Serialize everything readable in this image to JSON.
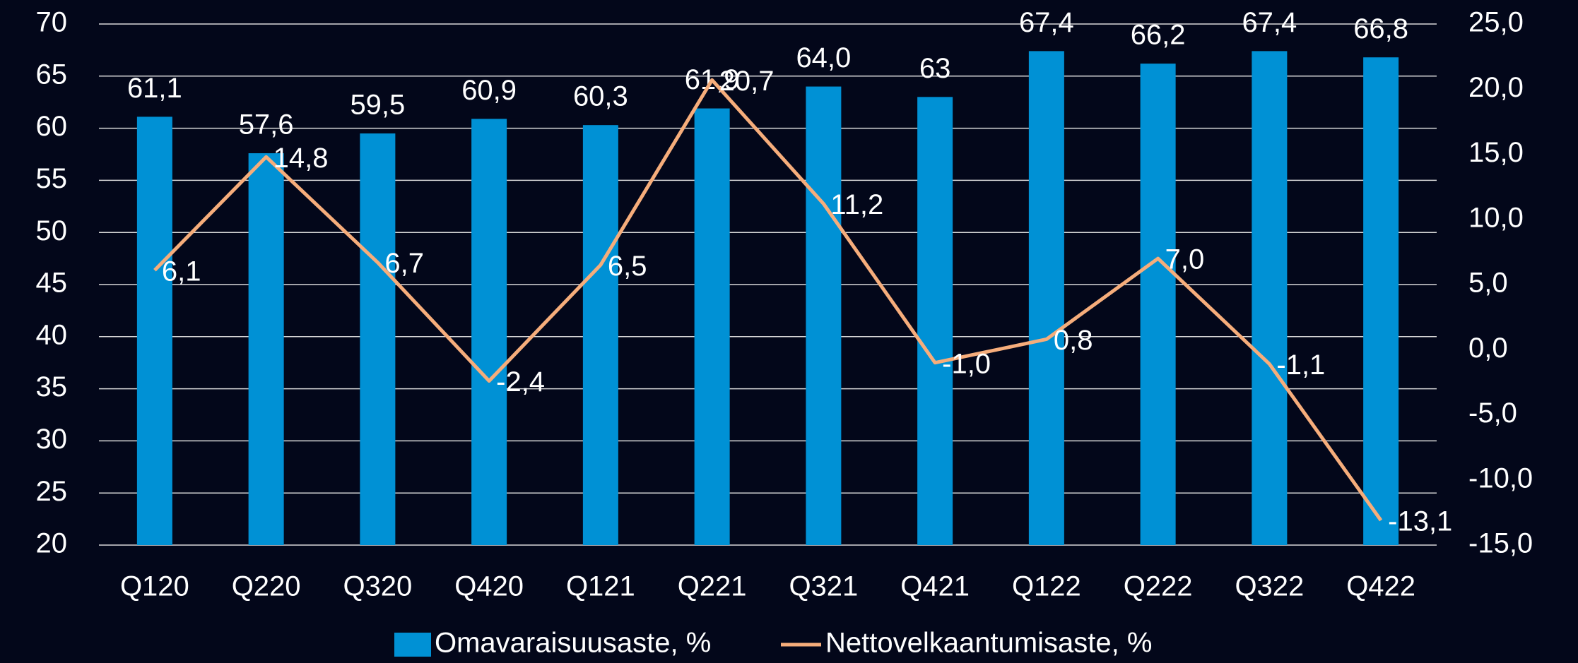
{
  "chart_data": {
    "type": "bar",
    "categories": [
      "Q120",
      "Q220",
      "Q320",
      "Q420",
      "Q121",
      "Q221",
      "Q321",
      "Q421",
      "Q122",
      "Q222",
      "Q322",
      "Q422"
    ],
    "series": [
      {
        "name": "Omavaraisuusaste, %",
        "type": "bar",
        "color": "#0091d5",
        "values": [
          61.1,
          57.6,
          59.5,
          60.9,
          60.3,
          61.9,
          64.0,
          63,
          67.4,
          66.2,
          67.4,
          66.8
        ],
        "value_labels": [
          "61,1",
          "57,6",
          "59,5",
          "60,9",
          "60,3",
          "61,9",
          "64,0",
          "63",
          "67,4",
          "66,2",
          "67,4",
          "66,8"
        ]
      },
      {
        "name": "Nettovelkaantumisaste, %",
        "type": "line",
        "axis": "y2",
        "color": "#f6ad7b",
        "values": [
          6.1,
          14.8,
          6.7,
          -2.4,
          6.5,
          20.7,
          11.2,
          -1.0,
          0.8,
          7.0,
          -1.1,
          -13.1
        ],
        "value_labels": [
          "6,1",
          "14,8",
          "6,7",
          "-2,4",
          "6,5",
          "20,7",
          "11,2",
          "-1,0",
          "0,8",
          "7,0",
          "-1,1",
          "-13,1"
        ]
      }
    ],
    "ylim": [
      20,
      70
    ],
    "yticks": [
      20,
      25,
      30,
      35,
      40,
      45,
      50,
      55,
      60,
      65,
      70
    ],
    "y2lim": [
      -15,
      25
    ],
    "y2ticks": [
      {
        "value": -15,
        "label": "-15,0"
      },
      {
        "value": -10,
        "label": "-10,0"
      },
      {
        "value": -5,
        "label": "-5,0"
      },
      {
        "value": 0,
        "label": "0,0"
      },
      {
        "value": 5,
        "label": "5,0"
      },
      {
        "value": 10,
        "label": "10,0"
      },
      {
        "value": 15,
        "label": "15,0"
      },
      {
        "value": 20,
        "label": "20,0"
      },
      {
        "value": 25,
        "label": "25,0"
      }
    ],
    "grid": true,
    "legend": "bottom"
  }
}
